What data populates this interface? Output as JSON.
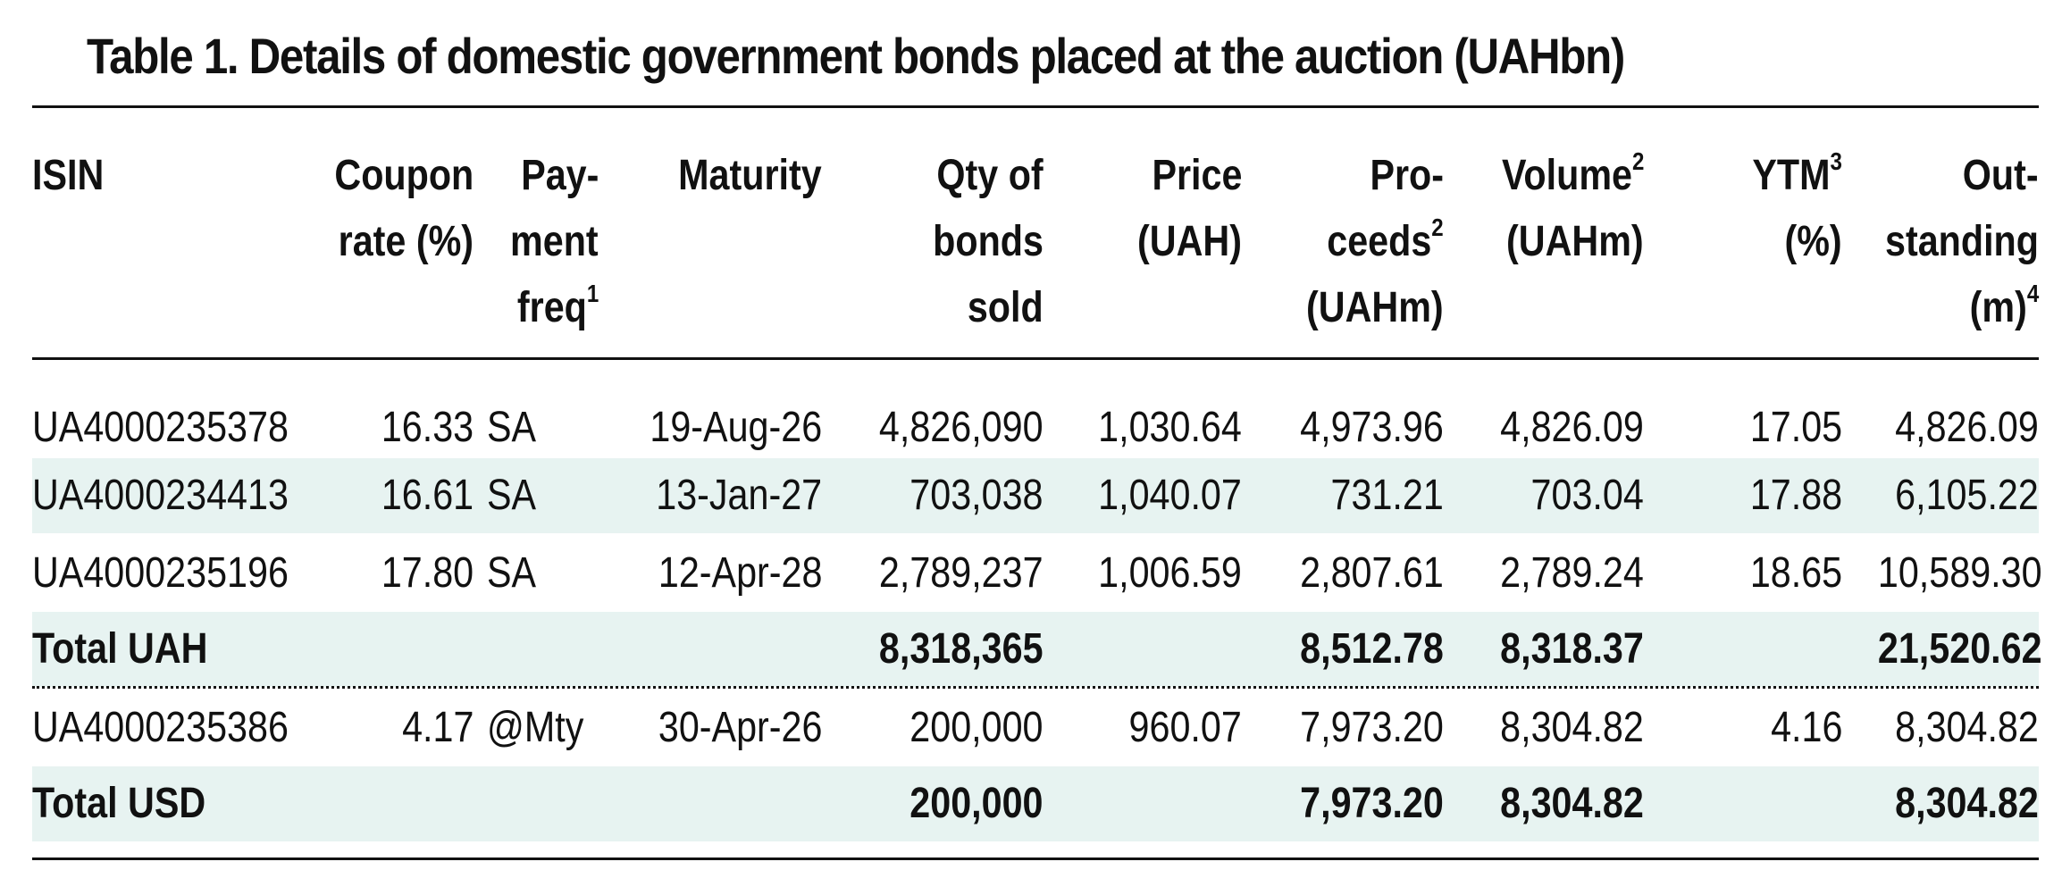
{
  "title": "Table 1. Details of domestic government bonds placed at the auction (UAHbn)",
  "colors": {
    "band": "#e7f3f1",
    "text": "#111111"
  },
  "headers": {
    "isin": "ISIN",
    "coupon": [
      "Coupon",
      "rate (%)"
    ],
    "payment": [
      "Pay-",
      "ment",
      "freq"
    ],
    "payment_sup": "1",
    "maturity": "Maturity",
    "qty": [
      "Qty of",
      "bonds",
      "sold"
    ],
    "price": [
      "Price",
      "(UAH)"
    ],
    "proceeds": [
      "Pro-",
      "ceeds",
      "(UAHm)"
    ],
    "proceeds_sup": "2",
    "volume": [
      "Volume",
      "(UAHm)"
    ],
    "volume_sup": "2",
    "ytm": [
      "YTM",
      "(%)"
    ],
    "ytm_sup": "3",
    "outstanding": [
      "Out-",
      "standing",
      "(m)"
    ],
    "outstanding_sup": "4"
  },
  "rows": [
    {
      "isin": "UA4000235378",
      "coupon": "16.33",
      "payment": "SA",
      "maturity": "19-Aug-26",
      "qty": "4,826,090",
      "price": "1,030.64",
      "proceeds": "4,973.96",
      "volume": "4,826.09",
      "ytm": "17.05",
      "outstanding": "4,826.09"
    },
    {
      "isin": "UA4000234413",
      "coupon": "16.61",
      "payment": "SA",
      "maturity": "13-Jan-27",
      "qty": "703,038",
      "price": "1,040.07",
      "proceeds": "731.21",
      "volume": "703.04",
      "ytm": "17.88",
      "outstanding": "6,105.22"
    },
    {
      "isin": "UA4000235196",
      "coupon": "17.80",
      "payment": "SA",
      "maturity": "12-Apr-28",
      "qty": "2,789,237",
      "price": "1,006.59",
      "proceeds": "2,807.61",
      "volume": "2,789.24",
      "ytm": "18.65",
      "outstanding": "10,589.30"
    },
    {
      "isin": "Total UAH",
      "coupon": "",
      "payment": "",
      "maturity": "",
      "qty": "8,318,365",
      "price": "",
      "proceeds": "8,512.78",
      "volume": "8,318.37",
      "ytm": "",
      "outstanding": "21,520.62"
    },
    {
      "isin": "UA4000235386",
      "coupon": "4.17",
      "payment": "@Mty",
      "maturity": "30-Apr-26",
      "qty": "200,000",
      "price": "960.07",
      "proceeds": "7,973.20",
      "volume": "8,304.82",
      "ytm": "4.16",
      "outstanding": "8,304.82"
    },
    {
      "isin": "Total USD",
      "coupon": "",
      "payment": "",
      "maturity": "",
      "qty": "200,000",
      "price": "",
      "proceeds": "7,973.20",
      "volume": "8,304.82",
      "ytm": "",
      "outstanding": "8,304.82"
    }
  ]
}
